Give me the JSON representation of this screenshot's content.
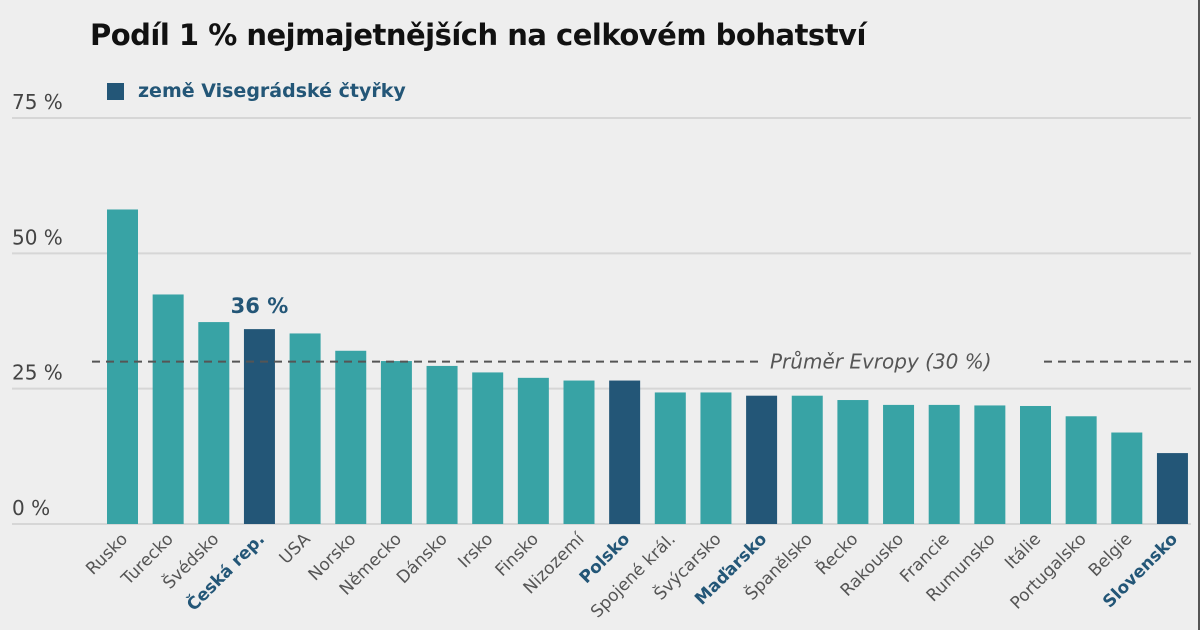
{
  "title": "Podíl 1 % nejmajetnějších na celkovém bohatství",
  "legend": {
    "label": "země Visegrádské čtyřky",
    "color": "#235677"
  },
  "colors": {
    "default_bar": "#38a3a5",
    "highlight_bar": "#235677",
    "gridline": "#d6d6d6",
    "average_line": "#555555"
  },
  "chart_data": {
    "type": "bar",
    "title": "Podíl 1 % nejmajetnějších na celkovém bohatství",
    "xlabel": "",
    "ylabel": "",
    "ylim": [
      0,
      75
    ],
    "yticks": [
      0,
      25,
      50,
      75
    ],
    "ytick_labels": [
      "0 %",
      "25 %",
      "50 %",
      "75 %"
    ],
    "grid": true,
    "legend_position": "top-left",
    "categories": [
      "Rusko",
      "Turecko",
      "Švédsko",
      "Česká rep.",
      "USA",
      "Norsko",
      "Německo",
      "Dánsko",
      "Irsko",
      "Finsko",
      "Nizozemí",
      "Polsko",
      "Spojené král.",
      "Švýcarsko",
      "Maďarsko",
      "Španělsko",
      "Řecko",
      "Rakousko",
      "Francie",
      "Rumunsko",
      "Itálie",
      "Portugalsko",
      "Belgie",
      "Slovensko"
    ],
    "values": [
      58.1,
      42.4,
      37.3,
      36.0,
      35.2,
      32.0,
      30.1,
      29.2,
      28.0,
      27.0,
      26.5,
      26.5,
      24.3,
      24.3,
      23.7,
      23.7,
      22.9,
      22.0,
      22.0,
      21.9,
      21.8,
      19.9,
      16.9,
      13.1
    ],
    "highlighted": [
      "Česká rep.",
      "Polsko",
      "Maďarsko",
      "Slovensko"
    ],
    "series": [
      {
        "name": "země Visegrádské čtyřky",
        "members": [
          "Česká rep.",
          "Polsko",
          "Maďarsko",
          "Slovensko"
        ]
      }
    ],
    "annotations": [
      {
        "category": "Česká rep.",
        "text": "36 %"
      }
    ],
    "reference_line": {
      "value": 30,
      "label": "Průměr Evropy (30 %)",
      "style": "dashed"
    }
  }
}
